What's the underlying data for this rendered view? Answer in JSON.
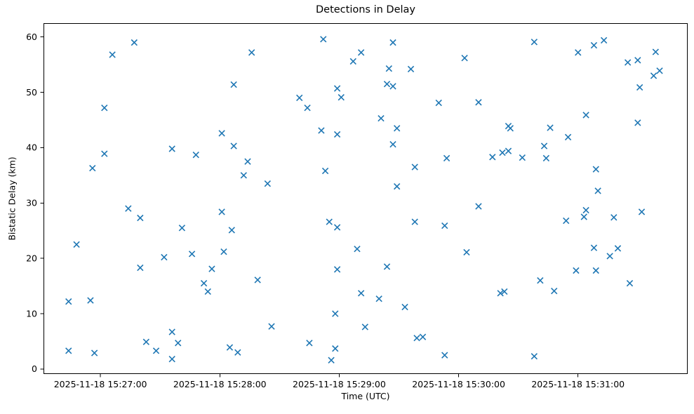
{
  "chart_data": {
    "type": "scatter",
    "title": "Detections in Delay",
    "xlabel": "Time (UTC)",
    "ylabel": "Bistatic Delay (km)",
    "marker": "x",
    "marker_color": "#1f77b4",
    "axis_color": "#000000",
    "background_color": "#ffffff",
    "grid": false,
    "legend": false,
    "time_origin": "2025-11-18 15:27:00",
    "x_unit": "seconds relative to 2025-11-18 15:27:00 UTC",
    "xlim_seconds": [
      -28.6,
      295.1
    ],
    "ylim": [
      -0.9,
      62.5
    ],
    "x_ticks": [
      {
        "offset_seconds": 0,
        "label": "2025-11-18 15:27:00"
      },
      {
        "offset_seconds": 60,
        "label": "2025-11-18 15:28:00"
      },
      {
        "offset_seconds": 120,
        "label": "2025-11-18 15:29:00"
      },
      {
        "offset_seconds": 180,
        "label": "2025-11-18 15:30:00"
      },
      {
        "offset_seconds": 240,
        "label": "2025-11-18 15:31:00"
      }
    ],
    "y_ticks": [
      0,
      10,
      20,
      30,
      40,
      50,
      60
    ],
    "points": [
      [
        17,
        59.0
      ],
      [
        6,
        56.8
      ],
      [
        2,
        47.2
      ],
      [
        2,
        38.9
      ],
      [
        -4,
        36.3
      ],
      [
        36,
        39.8
      ],
      [
        48,
        38.7
      ],
      [
        14,
        29.0
      ],
      [
        20,
        27.3
      ],
      [
        41,
        25.5
      ],
      [
        -12,
        22.5
      ],
      [
        32,
        20.2
      ],
      [
        46,
        20.8
      ],
      [
        20,
        18.3
      ],
      [
        52,
        15.5
      ],
      [
        -16,
        12.2
      ],
      [
        -5,
        12.4
      ],
      [
        36,
        6.7
      ],
      [
        23,
        4.9
      ],
      [
        39,
        4.7
      ],
      [
        28,
        3.3
      ],
      [
        -16,
        3.3
      ],
      [
        -3,
        2.9
      ],
      [
        36,
        1.8
      ],
      [
        112,
        59.6
      ],
      [
        76,
        57.2
      ],
      [
        131,
        57.2
      ],
      [
        127,
        55.6
      ],
      [
        67,
        51.4
      ],
      [
        119,
        50.7
      ],
      [
        121,
        49.1
      ],
      [
        100,
        49.0
      ],
      [
        104,
        47.2
      ],
      [
        61,
        42.6
      ],
      [
        111,
        43.1
      ],
      [
        119,
        42.4
      ],
      [
        67,
        40.3
      ],
      [
        74,
        37.5
      ],
      [
        72,
        35.0
      ],
      [
        113,
        35.8
      ],
      [
        84,
        33.5
      ],
      [
        61,
        28.4
      ],
      [
        66,
        25.1
      ],
      [
        115,
        26.6
      ],
      [
        119,
        25.6
      ],
      [
        62,
        21.2
      ],
      [
        129,
        21.7
      ],
      [
        56,
        18.1
      ],
      [
        79,
        16.1
      ],
      [
        119,
        18.0
      ],
      [
        54,
        14.0
      ],
      [
        131,
        13.7
      ],
      [
        118,
        10.0
      ],
      [
        86,
        7.7
      ],
      [
        133,
        7.6
      ],
      [
        105,
        4.7
      ],
      [
        65,
        3.9
      ],
      [
        69,
        3.0
      ],
      [
        118,
        3.7
      ],
      [
        116,
        1.6
      ],
      [
        147,
        59.0
      ],
      [
        183,
        56.2
      ],
      [
        145,
        54.3
      ],
      [
        156,
        54.2
      ],
      [
        144,
        51.5
      ],
      [
        147,
        51.1
      ],
      [
        170,
        48.1
      ],
      [
        190,
        48.2
      ],
      [
        141,
        45.3
      ],
      [
        149,
        43.5
      ],
      [
        205,
        43.9
      ],
      [
        206,
        43.5
      ],
      [
        147,
        40.6
      ],
      [
        174,
        38.1
      ],
      [
        197,
        38.3
      ],
      [
        202,
        39.1
      ],
      [
        205,
        39.4
      ],
      [
        212,
        38.2
      ],
      [
        158,
        36.5
      ],
      [
        149,
        33.0
      ],
      [
        190,
        29.4
      ],
      [
        158,
        26.6
      ],
      [
        173,
        25.9
      ],
      [
        184,
        21.1
      ],
      [
        144,
        18.5
      ],
      [
        201,
        13.7
      ],
      [
        203,
        14.0
      ],
      [
        140,
        12.7
      ],
      [
        153,
        11.2
      ],
      [
        159,
        5.6
      ],
      [
        162,
        5.8
      ],
      [
        173,
        2.5
      ],
      [
        218,
        59.1
      ],
      [
        253,
        59.4
      ],
      [
        248,
        58.5
      ],
      [
        240,
        57.2
      ],
      [
        279,
        57.3
      ],
      [
        265,
        55.4
      ],
      [
        270,
        55.8
      ],
      [
        281,
        53.9
      ],
      [
        278,
        53.0
      ],
      [
        271,
        50.9
      ],
      [
        244,
        45.9
      ],
      [
        270,
        44.5
      ],
      [
        226,
        43.6
      ],
      [
        235,
        41.9
      ],
      [
        223,
        40.3
      ],
      [
        224,
        38.1
      ],
      [
        249,
        36.1
      ],
      [
        250,
        32.2
      ],
      [
        244,
        28.7
      ],
      [
        243,
        27.5
      ],
      [
        234,
        26.8
      ],
      [
        258,
        27.4
      ],
      [
        272,
        28.4
      ],
      [
        248,
        21.9
      ],
      [
        260,
        21.8
      ],
      [
        256,
        20.4
      ],
      [
        239,
        17.8
      ],
      [
        249,
        17.8
      ],
      [
        221,
        16.0
      ],
      [
        266,
        15.5
      ],
      [
        228,
        14.1
      ],
      [
        218,
        2.3
      ]
    ]
  }
}
